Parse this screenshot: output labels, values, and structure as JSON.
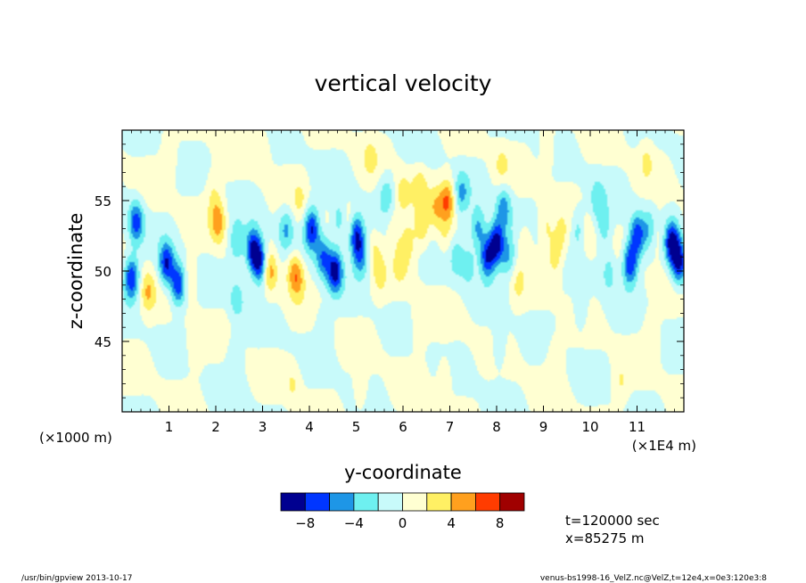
{
  "chart_data": {
    "type": "heatmap",
    "title": "vertical velocity",
    "xlabel": "y-coordinate",
    "ylabel": "z-coordinate",
    "x_scale_note": "(×1E4 m)",
    "y_scale_note": "(×1000 m)",
    "x_range": [
      0,
      12
    ],
    "y_range": [
      40,
      60
    ],
    "x_ticks": [
      "1",
      "2",
      "3",
      "4",
      "5",
      "6",
      "7",
      "8",
      "9",
      "10",
      "11"
    ],
    "y_ticks": [
      "45",
      "50",
      "55"
    ],
    "colorbar": {
      "levels": [
        -10,
        -8,
        -6,
        -4,
        -2,
        0,
        2,
        4,
        6,
        8,
        10
      ],
      "tick_labels": [
        "−8",
        "−4",
        "0",
        "4",
        "8"
      ],
      "colors": [
        "#000090",
        "#0036ff",
        "#1e96e6",
        "#6ef0f0",
        "#c8fafa",
        "#ffffd2",
        "#fff064",
        "#ffa01e",
        "#ff3c00",
        "#a00000"
      ]
    },
    "blobs": [
      {
        "x": 0.2,
        "z": 49.5,
        "w": -8
      },
      {
        "x": 0.3,
        "z": 53.5,
        "w": -7
      },
      {
        "x": 0.55,
        "z": 48.5,
        "w": 4
      },
      {
        "x": 0.95,
        "z": 50.5,
        "w": -8
      },
      {
        "x": 1.2,
        "z": 49.0,
        "w": -8
      },
      {
        "x": 1.45,
        "z": 49.5,
        "w": 2
      },
      {
        "x": 1.95,
        "z": 55.5,
        "w": 2
      },
      {
        "x": 2.05,
        "z": 53.5,
        "w": 5
      },
      {
        "x": 2.45,
        "z": 52.0,
        "w": -4
      },
      {
        "x": 2.45,
        "z": 48.0,
        "w": -3
      },
      {
        "x": 2.8,
        "z": 51.5,
        "w": -9
      },
      {
        "x": 2.95,
        "z": 50.5,
        "w": -8
      },
      {
        "x": 3.15,
        "z": 50.0,
        "w": 5
      },
      {
        "x": 3.5,
        "z": 53.0,
        "w": -4
      },
      {
        "x": 3.65,
        "z": 50.0,
        "w": 3
      },
      {
        "x": 3.8,
        "z": 55.0,
        "w": 2
      },
      {
        "x": 3.75,
        "z": 49.5,
        "w": 4
      },
      {
        "x": 4.05,
        "z": 53.0,
        "w": -8
      },
      {
        "x": 4.3,
        "z": 51.0,
        "w": -6
      },
      {
        "x": 4.55,
        "z": 50.0,
        "w": -9
      },
      {
        "x": 4.65,
        "z": 53.5,
        "w": -4
      },
      {
        "x": 4.8,
        "z": 53.5,
        "w": 2
      },
      {
        "x": 5.0,
        "z": 52.5,
        "w": -8
      },
      {
        "x": 5.1,
        "z": 51.0,
        "w": -5
      },
      {
        "x": 5.4,
        "z": 51.5,
        "w": 2
      },
      {
        "x": 5.5,
        "z": 49.5,
        "w": 2
      },
      {
        "x": 5.8,
        "z": 53.0,
        "w": 2
      },
      {
        "x": 5.95,
        "z": 50.5,
        "w": 2
      },
      {
        "x": 6.0,
        "z": 55.5,
        "w": 3
      },
      {
        "x": 6.1,
        "z": 52.0,
        "w": 3
      },
      {
        "x": 6.35,
        "z": 56.0,
        "w": 3
      },
      {
        "x": 6.4,
        "z": 53.0,
        "w": 3
      },
      {
        "x": 6.7,
        "z": 54.5,
        "w": 3
      },
      {
        "x": 6.9,
        "z": 52.5,
        "w": 2
      },
      {
        "x": 6.95,
        "z": 55.0,
        "w": 6
      },
      {
        "x": 5.65,
        "z": 55.5,
        "w": -3
      },
      {
        "x": 7.25,
        "z": 55.5,
        "w": -4
      },
      {
        "x": 7.15,
        "z": 51.0,
        "w": -3
      },
      {
        "x": 7.4,
        "z": 50.5,
        "w": -3
      },
      {
        "x": 7.6,
        "z": 53.0,
        "w": -5
      },
      {
        "x": 7.8,
        "z": 51.0,
        "w": -8
      },
      {
        "x": 8.0,
        "z": 52.0,
        "w": -9
      },
      {
        "x": 8.15,
        "z": 54.5,
        "w": -5
      },
      {
        "x": 8.25,
        "z": 51.0,
        "w": -4
      },
      {
        "x": 8.45,
        "z": 49.0,
        "w": 2
      },
      {
        "x": 8.6,
        "z": 52.0,
        "w": 2
      },
      {
        "x": 9.05,
        "z": 53.0,
        "w": 2
      },
      {
        "x": 9.25,
        "z": 51.0,
        "w": 3
      },
      {
        "x": 9.4,
        "z": 52.5,
        "w": 2
      },
      {
        "x": 9.75,
        "z": 53.0,
        "w": -3
      },
      {
        "x": 9.95,
        "z": 52.5,
        "w": 2
      },
      {
        "x": 10.15,
        "z": 55.0,
        "w": -3
      },
      {
        "x": 10.3,
        "z": 53.0,
        "w": -3
      },
      {
        "x": 10.4,
        "z": 50.0,
        "w": -3
      },
      {
        "x": 10.85,
        "z": 50.5,
        "w": -8
      },
      {
        "x": 11.0,
        "z": 52.5,
        "w": -7
      },
      {
        "x": 11.25,
        "z": 53.0,
        "w": -3
      },
      {
        "x": 11.45,
        "z": 52.5,
        "w": 2
      },
      {
        "x": 11.75,
        "z": 52.0,
        "w": -9
      },
      {
        "x": 11.9,
        "z": 50.5,
        "w": -8
      },
      {
        "x": 1.55,
        "z": 44.5,
        "w": 2
      },
      {
        "x": 3.65,
        "z": 42.0,
        "w": 2
      },
      {
        "x": 5.1,
        "z": 41.5,
        "w": 2
      },
      {
        "x": 6.35,
        "z": 46.0,
        "w": 2
      },
      {
        "x": 6.9,
        "z": 42.5,
        "w": 2
      },
      {
        "x": 9.25,
        "z": 44.0,
        "w": 2
      },
      {
        "x": 10.65,
        "z": 42.0,
        "w": 2
      },
      {
        "x": 11.3,
        "z": 45.5,
        "w": 2
      },
      {
        "x": 2.4,
        "z": 44.0,
        "w": -2
      },
      {
        "x": 4.3,
        "z": 46.0,
        "w": -2
      },
      {
        "x": 8.05,
        "z": 44.5,
        "w": -2
      },
      {
        "x": 9.8,
        "z": 47.0,
        "w": -2
      },
      {
        "x": 1.0,
        "z": 58.0,
        "w": 2
      },
      {
        "x": 3.0,
        "z": 58.5,
        "w": 2
      },
      {
        "x": 5.3,
        "z": 58.0,
        "w": 2
      },
      {
        "x": 8.1,
        "z": 57.5,
        "w": 2
      },
      {
        "x": 9.1,
        "z": 58.5,
        "w": 2
      },
      {
        "x": 11.2,
        "z": 58.0,
        "w": 2
      }
    ]
  },
  "info": {
    "time_label": "t=120000 sec",
    "x_label": "x=85275 m",
    "footer_left": "/usr/bin/gpview  2013-10-17",
    "footer_right": "venus-bs1998-16_VelZ.nc@VelZ,t=12e4,x=0e3:120e3:8"
  }
}
